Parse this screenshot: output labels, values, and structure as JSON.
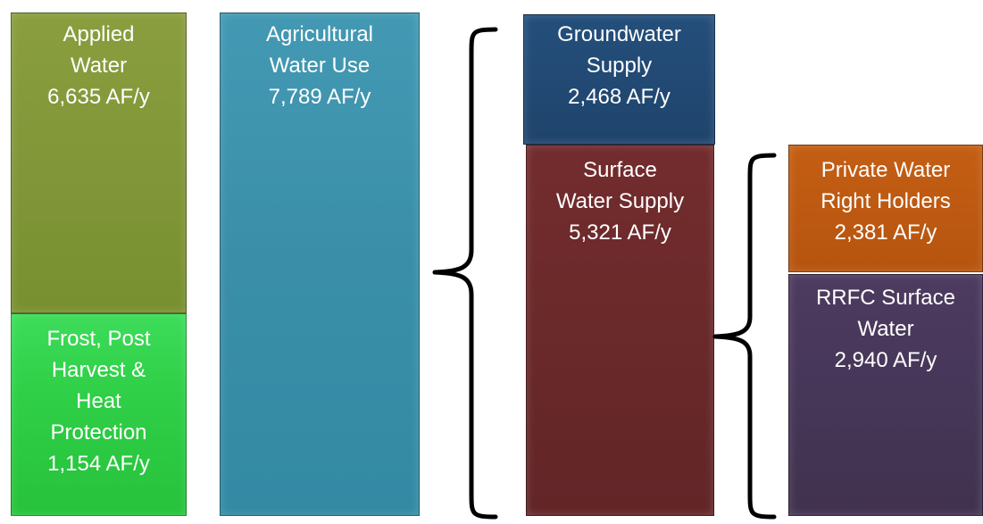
{
  "boxes": {
    "applied_water": {
      "line1": "Applied",
      "line2": "Water",
      "line3": "6,635 AF/y"
    },
    "frost": {
      "line1": "Frost, Post",
      "line2": "Harvest &",
      "line3": "Heat",
      "line4": "Protection",
      "line5": "1,154 AF/y"
    },
    "ag_use": {
      "line1": "Agricultural",
      "line2": "Water Use",
      "line3": "7,789 AF/y"
    },
    "groundwater": {
      "line1": "Groundwater",
      "line2": "Supply",
      "line3": "2,468 AF/y"
    },
    "surface": {
      "line1": "Surface",
      "line2": "Water Supply",
      "line3": "5,321 AF/y"
    },
    "private": {
      "line1": "Private Water",
      "line2": "Right Holders",
      "line3": "2,381 AF/y"
    },
    "rrfc": {
      "line1": "RRFC Surface",
      "line2": "Water",
      "line3": "2,940 AF/y"
    }
  },
  "colors": {
    "applied_water": "#7f9537",
    "frost": "#2fcf47",
    "ag_use": "#3a8ea8",
    "groundwater": "#1f446c",
    "surface": "#6a292a",
    "private": "#b6540f",
    "rrfc": "#463658"
  }
}
